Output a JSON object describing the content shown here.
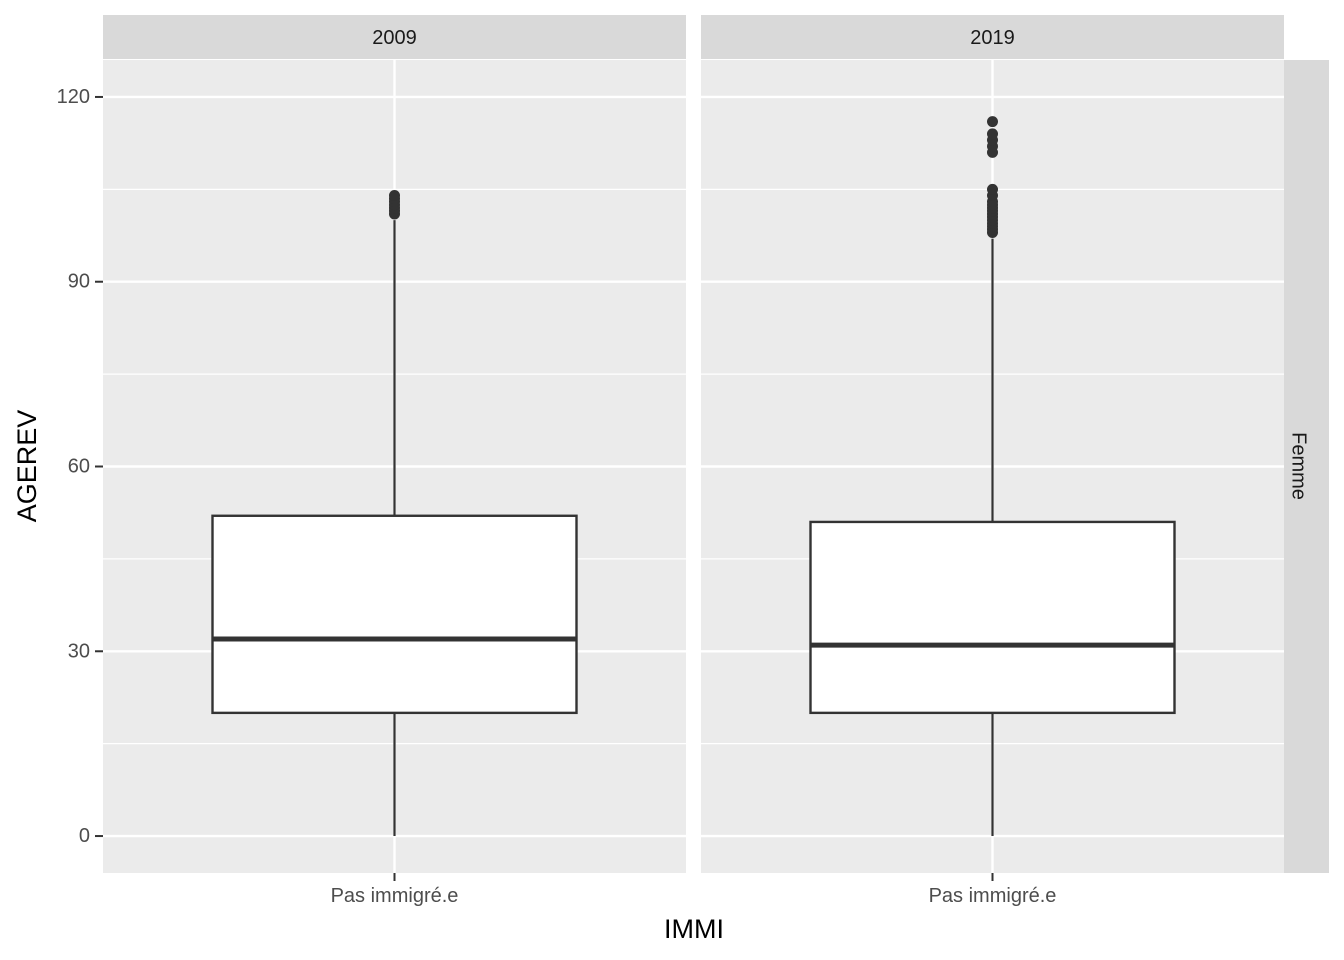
{
  "chart_data": {
    "type": "boxplot",
    "xlabel": "IMMI",
    "ylabel": "AGEREV",
    "ylim": [
      -6,
      126
    ],
    "yticks": [
      0,
      30,
      60,
      90,
      120
    ],
    "facet_row_label": "Femme",
    "grid": true,
    "panels": [
      {
        "title": "2009",
        "category": "Pas immigré.e",
        "whisker_low": 0,
        "q1": 20,
        "median": 32,
        "q3": 52,
        "whisker_high": 100,
        "outliers": [
          101,
          101.5,
          102,
          102.5,
          103,
          103.5,
          104
        ]
      },
      {
        "title": "2019",
        "category": "Pas immigré.e",
        "whisker_low": 0,
        "q1": 20,
        "median": 31,
        "q3": 51,
        "whisker_high": 97,
        "outliers": [
          98,
          98.5,
          99,
          99.5,
          100,
          100.5,
          101,
          101.5,
          102,
          102.5,
          103,
          104,
          105,
          111,
          112,
          113,
          114,
          116
        ]
      }
    ]
  }
}
